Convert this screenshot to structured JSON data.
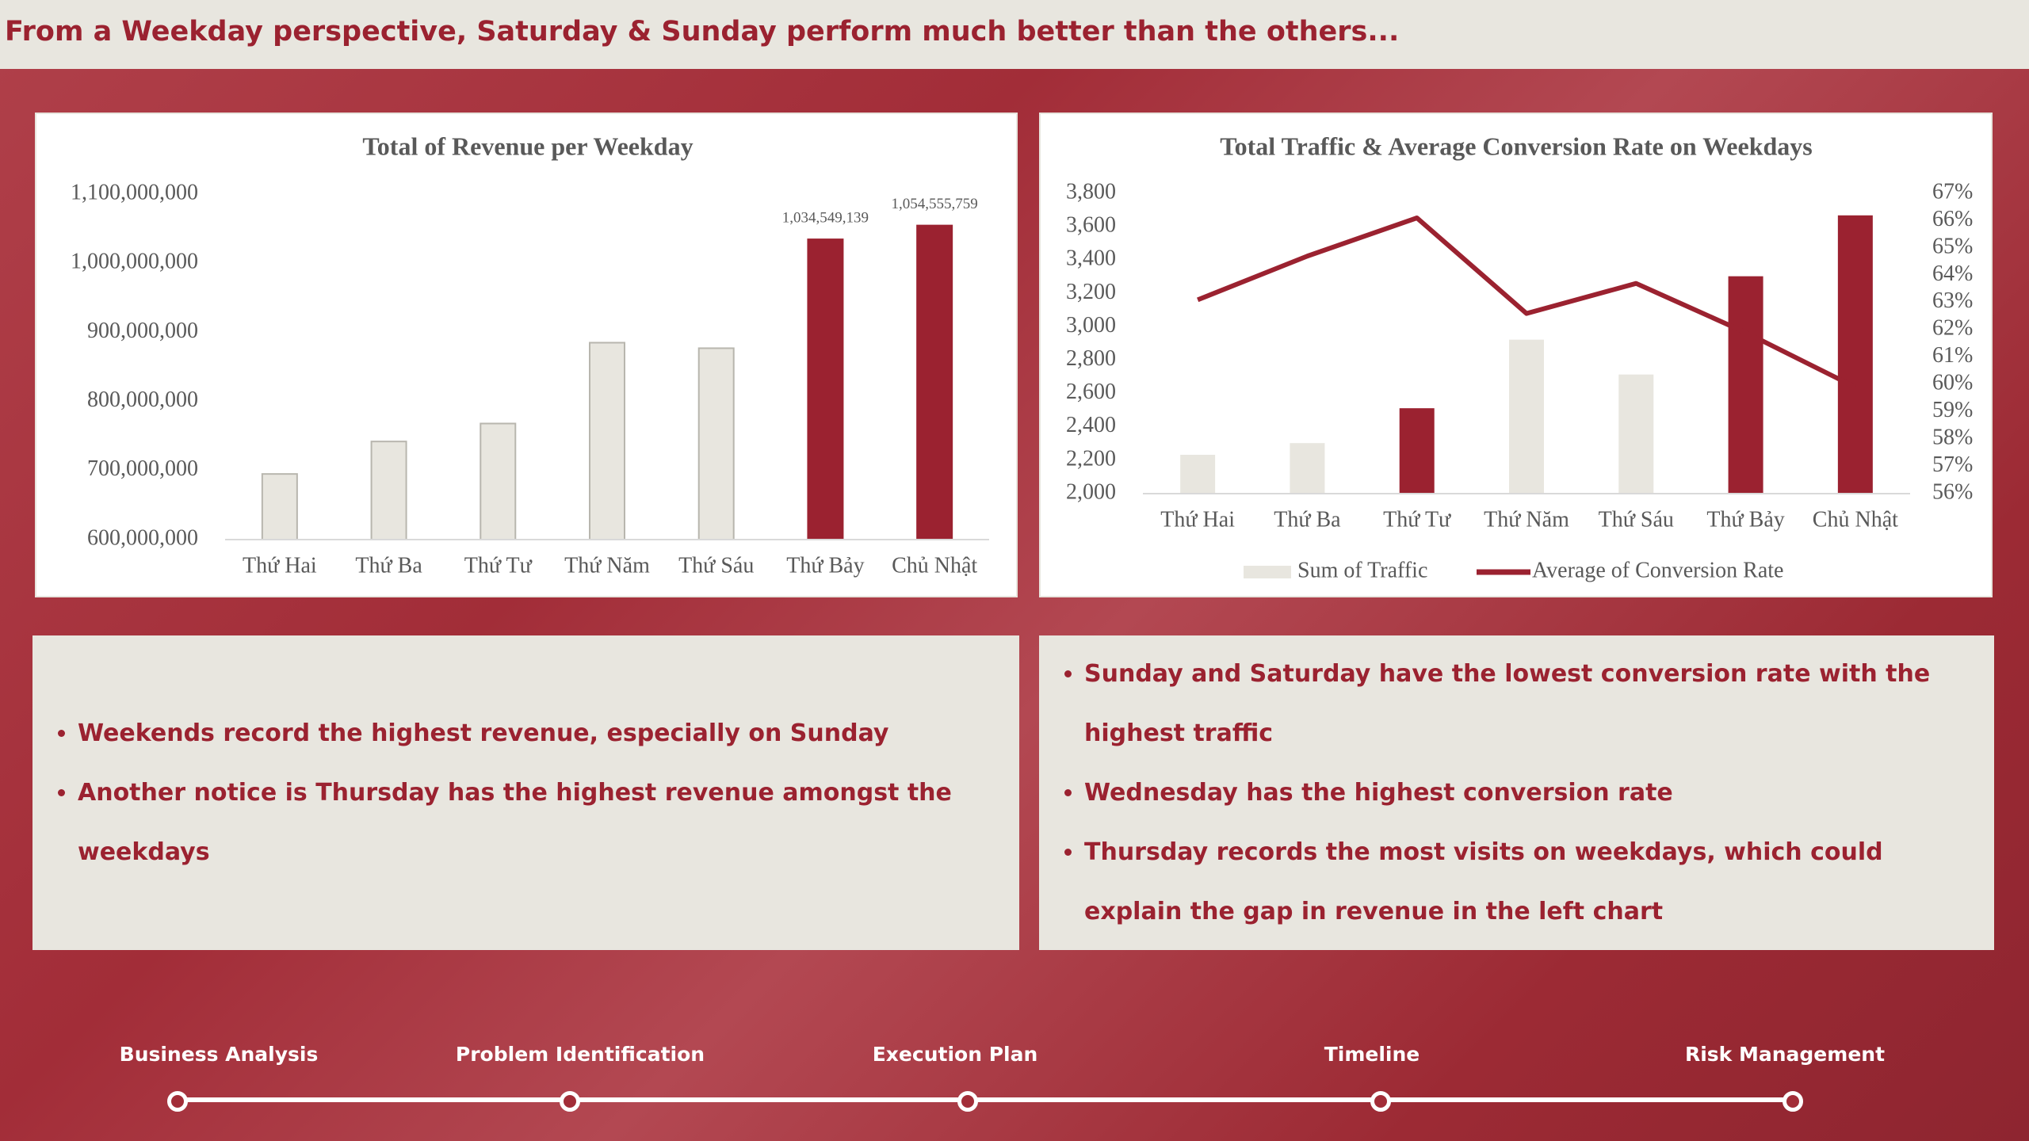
{
  "header": {
    "title": "From a Weekday perspective, Saturday & Sunday perform much better than the others..."
  },
  "chart_data": [
    {
      "type": "bar",
      "title": "Total of Revenue per Weekday",
      "categories": [
        "Thứ Hai",
        "Thứ Ba",
        "Thứ Tư",
        "Thứ Năm",
        "Thứ Sáu",
        "Thứ Bảy",
        "Chủ Nhật"
      ],
      "values": [
        695000000,
        742000000,
        768000000,
        885000000,
        877000000,
        1034549139,
        1054555759
      ],
      "value_labels": [
        null,
        null,
        null,
        null,
        null,
        "1,034,549,139",
        "1,054,555,759"
      ],
      "colors": [
        "#e8e6df",
        "#e8e6df",
        "#e8e6df",
        "#e8e6df",
        "#e8e6df",
        "#9b2230",
        "#9b2230"
      ],
      "ylim": [
        600000000,
        1100000000
      ],
      "yticks": [
        {
          "value": 600000000,
          "label": "600,000,000"
        },
        {
          "value": 700000000,
          "label": "700,000,000"
        },
        {
          "value": 800000000,
          "label": "800,000,000"
        },
        {
          "value": 900000000,
          "label": "900,000,000"
        },
        {
          "value": 1000000000,
          "label": "1,000,000,000"
        },
        {
          "value": 1100000000,
          "label": "1,100,000,000"
        }
      ],
      "grid": false
    },
    {
      "type": "combo",
      "title": "Total Traffic & Average Conversion Rate on Weekdays",
      "categories": [
        "Thứ Hai",
        "Thứ Ba",
        "Thứ Tư",
        "Thứ Năm",
        "Thứ Sáu",
        "Thứ Bảy",
        "Chủ Nhật"
      ],
      "series": [
        {
          "name": "Sum of Traffic",
          "kind": "bar",
          "color": "#e8e6df",
          "colors": [
            "#e8e6df",
            "#e8e6df",
            "#9b2230",
            "#e8e6df",
            "#e8e6df",
            "#9b2230",
            "#9b2230"
          ],
          "values": [
            2233,
            2303,
            2512,
            2923,
            2714,
            3303,
            3668
          ]
        },
        {
          "name": "Average of Conversion Rate",
          "kind": "line",
          "axis": "y2",
          "color": "#9b2230",
          "values": [
            63.1,
            64.7,
            66.1,
            62.6,
            63.7,
            61.9,
            59.9
          ]
        }
      ],
      "ylim": [
        2000,
        3800
      ],
      "yticks": [
        {
          "value": 2000,
          "label": "2,000"
        },
        {
          "value": 2200,
          "label": "2,200"
        },
        {
          "value": 2400,
          "label": "2,400"
        },
        {
          "value": 2600,
          "label": "2,600"
        },
        {
          "value": 2800,
          "label": "2,800"
        },
        {
          "value": 3000,
          "label": "3,000"
        },
        {
          "value": 3200,
          "label": "3,200"
        },
        {
          "value": 3400,
          "label": "3,400"
        },
        {
          "value": 3600,
          "label": "3,600"
        },
        {
          "value": 3800,
          "label": "3,800"
        }
      ],
      "y2lim": [
        56,
        67
      ],
      "y2ticks": [
        {
          "value": 56,
          "label": "56%"
        },
        {
          "value": 57,
          "label": "57%"
        },
        {
          "value": 58,
          "label": "58%"
        },
        {
          "value": 59,
          "label": "59%"
        },
        {
          "value": 60,
          "label": "60%"
        },
        {
          "value": 61,
          "label": "61%"
        },
        {
          "value": 62,
          "label": "62%"
        },
        {
          "value": 63,
          "label": "63%"
        },
        {
          "value": 64,
          "label": "64%"
        },
        {
          "value": 65,
          "label": "65%"
        },
        {
          "value": 66,
          "label": "66%"
        },
        {
          "value": 67,
          "label": "67%"
        }
      ],
      "legend": "bottom",
      "grid": false
    }
  ],
  "notes": {
    "left": [
      "Weekends record the highest revenue, especially on Sunday",
      "Another notice is Thursday has the highest revenue amongst the weekdays"
    ],
    "right": [
      "Sunday and Saturday have the lowest conversion rate with the highest traffic",
      "Wednesday has the highest conversion rate",
      "Thursday records the most visits on weekdays, which could explain the gap in revenue in the left chart"
    ]
  },
  "timeline": [
    "Business Analysis",
    "Problem Identification",
    "Execution Plan",
    "Timeline",
    "Risk Management"
  ]
}
